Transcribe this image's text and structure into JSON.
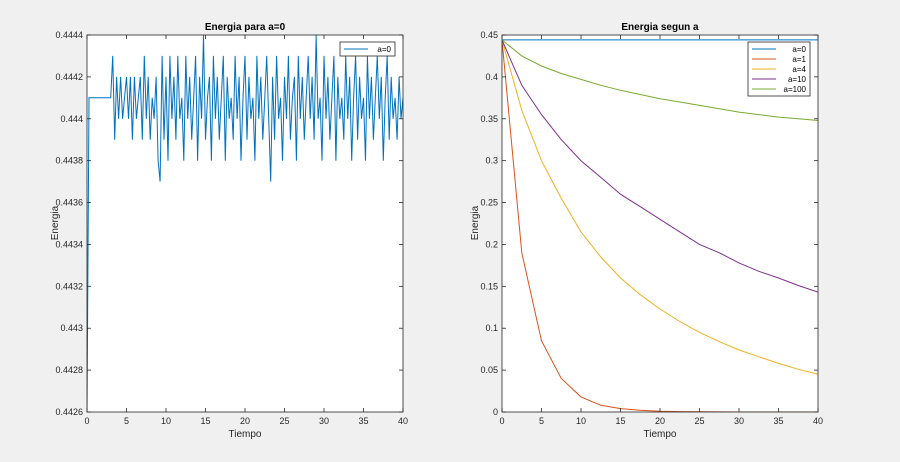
{
  "colors": {
    "background": "#f0f0f0",
    "a0": "#0072BD",
    "a1": "#D95319",
    "a4": "#EDB120",
    "a10": "#7E2F8E",
    "a100": "#77AC30"
  },
  "chart_data": [
    {
      "type": "line",
      "title": "Energia para a=0",
      "xlabel": "Tiempo",
      "ylabel": "Energia",
      "xlim": [
        0,
        40
      ],
      "ylim": [
        0.4426,
        0.4444
      ],
      "xticks": [
        "0",
        "5",
        "10",
        "15",
        "20",
        "25",
        "30",
        "35",
        "40"
      ],
      "yticks": [
        "0.4426",
        "0.4428",
        "0.443",
        "0.4432",
        "0.4434",
        "0.4436",
        "0.4438",
        "0.444",
        "0.4442",
        "0.4444"
      ],
      "grid": false,
      "legend_placement": "top-right",
      "series": [
        {
          "name": "a=0",
          "color": "#0072BD",
          "values": [
            0.4426,
            0.4441,
            0.4441,
            0.4441,
            0.4441,
            0.4441,
            0.4441,
            0.4441,
            0.4441,
            0.4441,
            0.4441,
            0.4441,
            0.4441,
            0.4443,
            0.4439,
            0.4442,
            0.444,
            0.4442,
            0.444,
            0.4441,
            0.4442,
            0.444,
            0.4442,
            0.4439,
            0.4442,
            0.444,
            0.4441,
            0.4442,
            0.4439,
            0.4443,
            0.444,
            0.4442,
            0.4439,
            0.4441,
            0.444,
            0.4442,
            0.4438,
            0.4437,
            0.4443,
            0.4439,
            0.4442,
            0.4438,
            0.4443,
            0.444,
            0.4442,
            0.4439,
            0.4443,
            0.444,
            0.4441,
            0.4438,
            0.4443,
            0.444,
            0.4442,
            0.4439,
            0.4441,
            0.4443,
            0.4438,
            0.4442,
            0.444,
            0.4444,
            0.4439,
            0.4441,
            0.4442,
            0.4438,
            0.4443,
            0.444,
            0.4442,
            0.4439,
            0.4441,
            0.4443,
            0.4438,
            0.4442,
            0.444,
            0.4441,
            0.4439,
            0.4443,
            0.444,
            0.4442,
            0.4438,
            0.4441,
            0.4443,
            0.4439,
            0.4442,
            0.444,
            0.4441,
            0.4438,
            0.4443,
            0.444,
            0.4442,
            0.4439,
            0.4441,
            0.4443,
            0.444,
            0.4437,
            0.4442,
            0.4439,
            0.4443,
            0.444,
            0.4441,
            0.4438,
            0.4442,
            0.444,
            0.4443,
            0.4439,
            0.4441,
            0.4442,
            0.4438,
            0.4443,
            0.444,
            0.4442,
            0.4439,
            0.4441,
            0.4443,
            0.444,
            0.4442,
            0.4439,
            0.4444,
            0.444,
            0.4441,
            0.4438,
            0.4443,
            0.444,
            0.4442,
            0.4439,
            0.4441,
            0.4443,
            0.4438,
            0.4442,
            0.444,
            0.4441,
            0.4439,
            0.4443,
            0.444,
            0.4442,
            0.4438,
            0.4441,
            0.4443,
            0.4439,
            0.4442,
            0.444,
            0.4441,
            0.4438,
            0.4443,
            0.444,
            0.4442,
            0.4439,
            0.4441,
            0.4443,
            0.444,
            0.4442,
            0.4438,
            0.4441,
            0.4443,
            0.4439,
            0.4442,
            0.444,
            0.4441,
            0.4439,
            0.4442,
            0.444,
            0.4441
          ]
        }
      ]
    },
    {
      "type": "line",
      "title": "Energia segun a",
      "xlabel": "Tiempo",
      "ylabel": "Energia",
      "xlim": [
        0,
        40
      ],
      "ylim": [
        0,
        0.45
      ],
      "xticks": [
        "0",
        "5",
        "10",
        "15",
        "20",
        "25",
        "30",
        "35",
        "40"
      ],
      "yticks": [
        "0",
        "0.05",
        "0.1",
        "0.15",
        "0.2",
        "0.25",
        "0.3",
        "0.35",
        "0.4",
        "0.45"
      ],
      "grid": false,
      "legend_placement": "top-right",
      "x": [
        0,
        2.5,
        5,
        7.5,
        10,
        12.5,
        15,
        17.5,
        20,
        22.5,
        25,
        27.5,
        30,
        32.5,
        35,
        37.5,
        40
      ],
      "series": [
        {
          "name": "a=0",
          "color": "#0072BD",
          "values": [
            0.4442,
            0.4442,
            0.4442,
            0.4442,
            0.4442,
            0.4442,
            0.4442,
            0.4442,
            0.4442,
            0.4442,
            0.4442,
            0.4442,
            0.4442,
            0.4442,
            0.4442,
            0.4442,
            0.4442
          ]
        },
        {
          "name": "a=1",
          "color": "#D95319",
          "values": [
            0.444,
            0.19,
            0.085,
            0.04,
            0.018,
            0.008,
            0.004,
            0.002,
            0.001,
            0.0005,
            0.0002,
            0.0001,
            0,
            0,
            0,
            0,
            0
          ]
        },
        {
          "name": "a=4",
          "color": "#EDB120",
          "values": [
            0.444,
            0.36,
            0.3,
            0.255,
            0.215,
            0.185,
            0.16,
            0.14,
            0.123,
            0.108,
            0.095,
            0.084,
            0.074,
            0.066,
            0.058,
            0.051,
            0.045
          ]
        },
        {
          "name": "a=10",
          "color": "#7E2F8E",
          "values": [
            0.444,
            0.39,
            0.355,
            0.325,
            0.3,
            0.28,
            0.26,
            0.245,
            0.23,
            0.215,
            0.2,
            0.19,
            0.178,
            0.168,
            0.16,
            0.151,
            0.143
          ]
        },
        {
          "name": "a=100",
          "color": "#77AC30",
          "values": [
            0.444,
            0.425,
            0.413,
            0.404,
            0.397,
            0.39,
            0.384,
            0.379,
            0.374,
            0.37,
            0.366,
            0.362,
            0.358,
            0.355,
            0.352,
            0.35,
            0.348
          ]
        }
      ]
    }
  ]
}
